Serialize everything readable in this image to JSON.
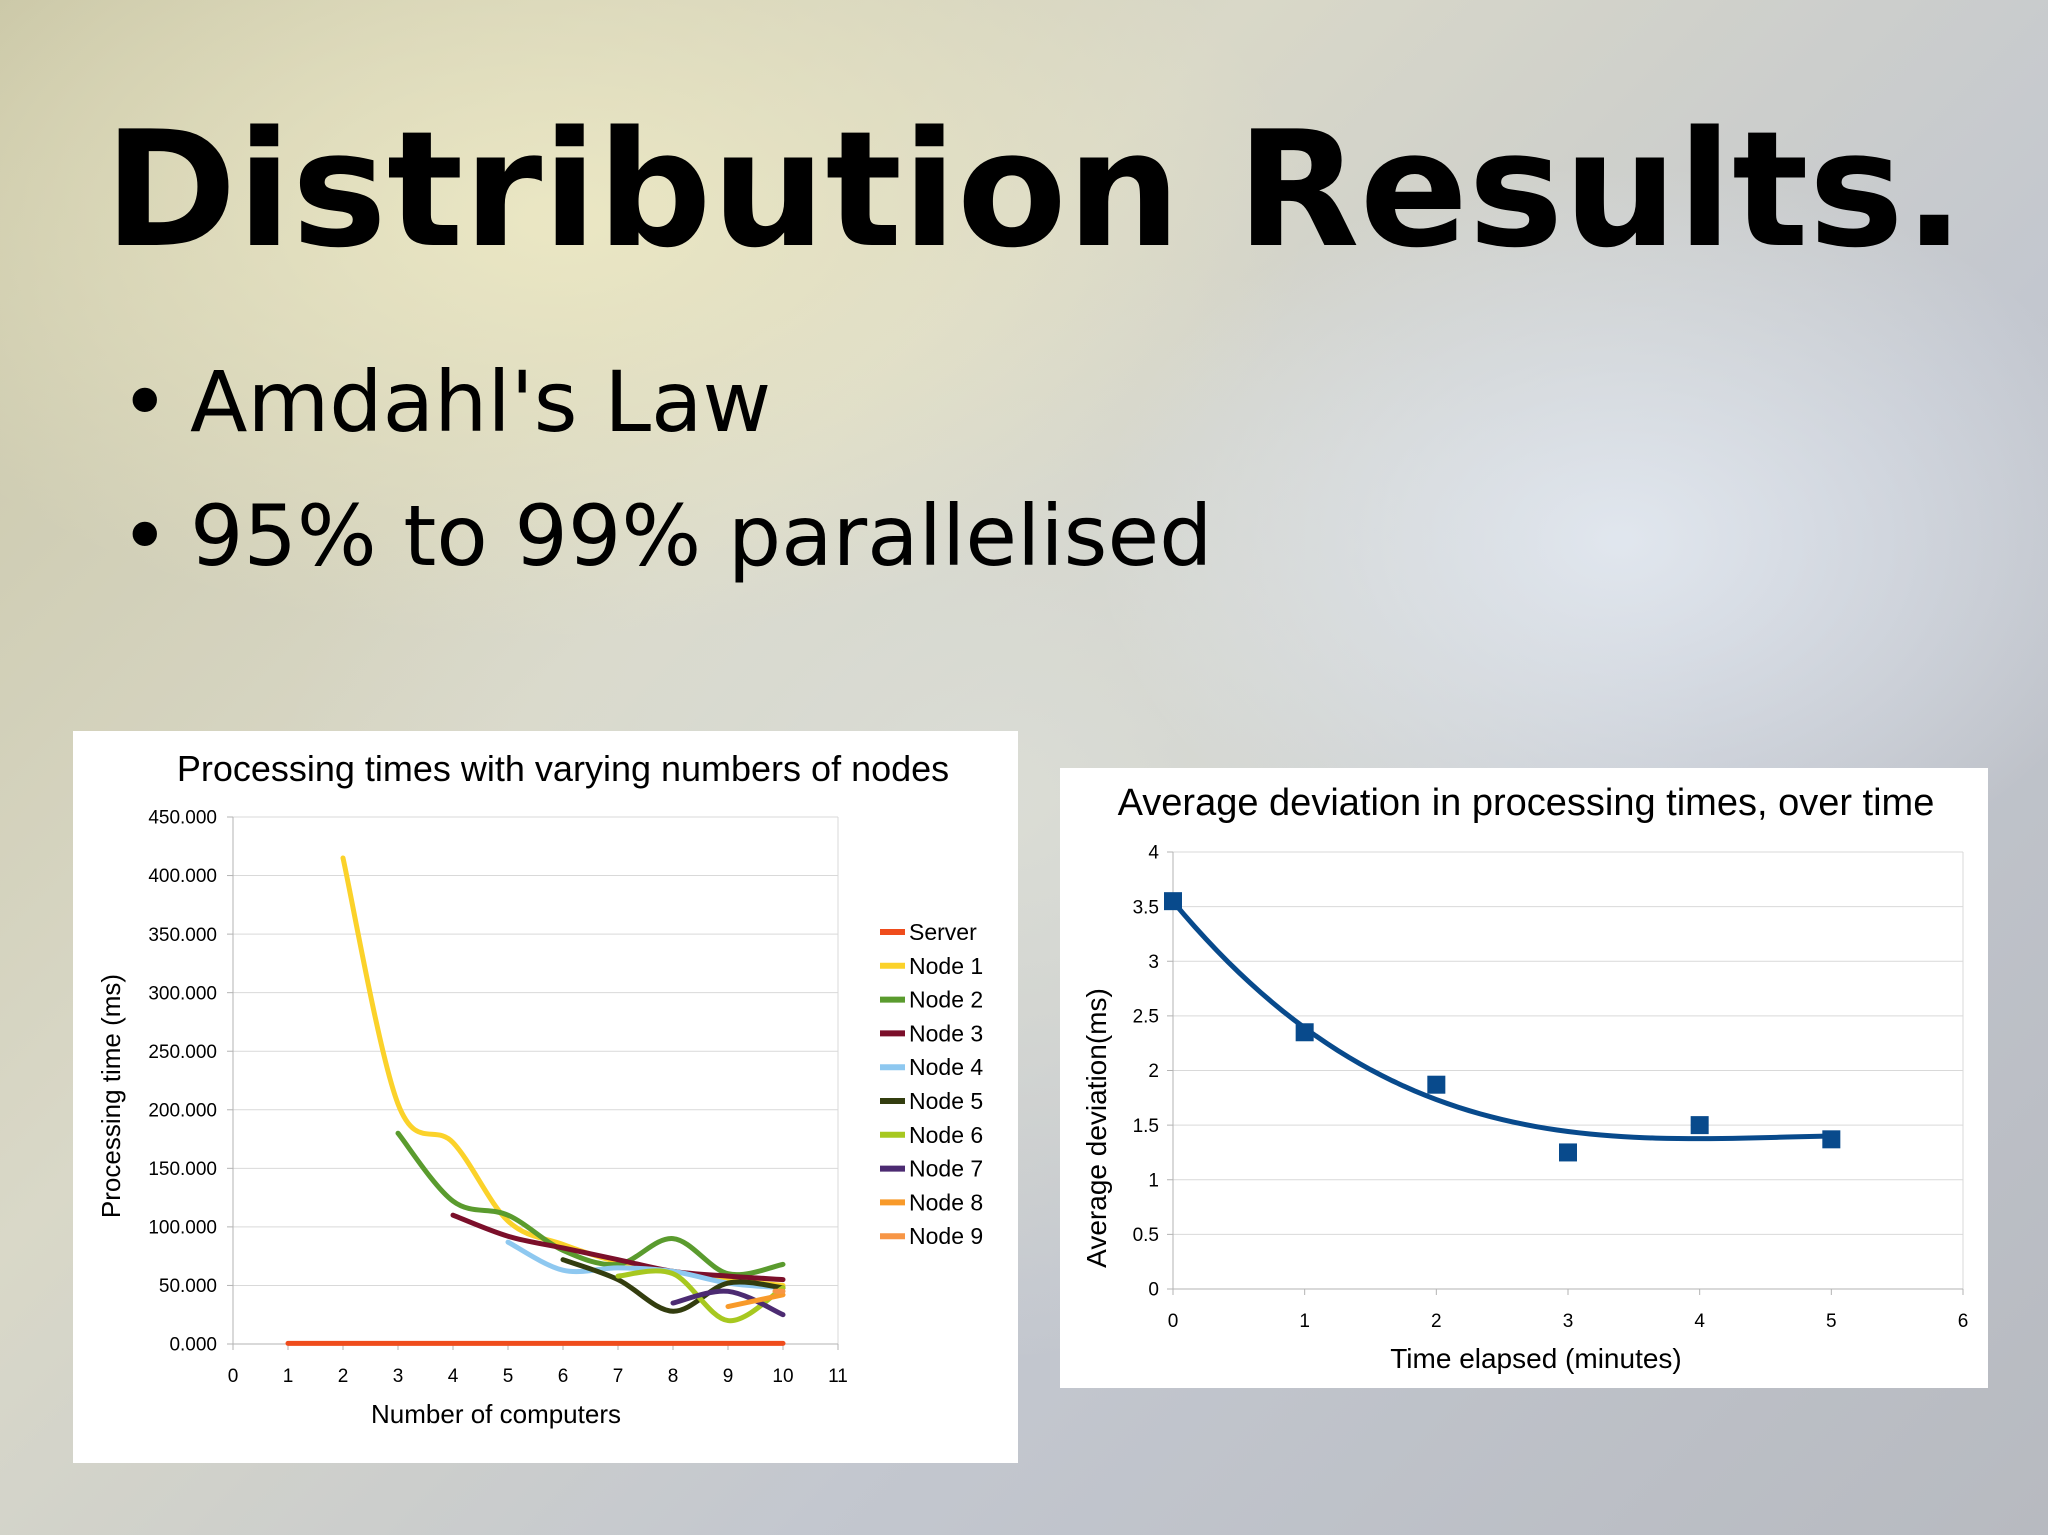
{
  "slide": {
    "title": "Distribution Results.",
    "bullets": [
      "Amdahl's Law",
      "95% to 99% parallelised"
    ]
  },
  "chart_data": [
    {
      "type": "line",
      "title": "Processing times with varying numbers of nodes",
      "xlabel": "Number of computers",
      "ylabel": "Processing time (ms)",
      "xlim": [
        0,
        11
      ],
      "ylim": [
        0,
        450
      ],
      "x_ticks": [
        "0",
        "1",
        "2",
        "3",
        "4",
        "5",
        "6",
        "7",
        "8",
        "9",
        "10",
        "11"
      ],
      "y_ticks": [
        "0.000",
        "50.000",
        "100.000",
        "150.000",
        "200.000",
        "250.000",
        "300.000",
        "350.000",
        "400.000",
        "450.000"
      ],
      "y_tick_values": [
        0,
        50,
        100,
        150,
        200,
        250,
        300,
        350,
        400,
        450
      ],
      "grid": true,
      "legend_position": "right",
      "series": [
        {
          "name": "Server",
          "color": "#ef4c1c",
          "x": [
            1,
            2,
            3,
            4,
            5,
            6,
            7,
            8,
            9,
            10
          ],
          "values": [
            0.5,
            0.5,
            0.5,
            0.5,
            0.5,
            0.5,
            0.5,
            0.5,
            0.5,
            0.5
          ]
        },
        {
          "name": "Node 1",
          "color": "#fbd22a",
          "x": [
            2,
            3,
            4,
            5,
            6,
            7,
            8,
            9,
            10
          ],
          "values": [
            415,
            205,
            172,
            105,
            85,
            70,
            62,
            55,
            50
          ]
        },
        {
          "name": "Node 2",
          "color": "#5a9b2e",
          "x": [
            3,
            4,
            5,
            6,
            7,
            8,
            9,
            10
          ],
          "values": [
            180,
            122,
            110,
            80,
            68,
            90,
            60,
            68
          ]
        },
        {
          "name": "Node 3",
          "color": "#7b0f2a",
          "x": [
            4,
            5,
            6,
            7,
            8,
            9,
            10
          ],
          "values": [
            110,
            92,
            82,
            72,
            62,
            58,
            55
          ]
        },
        {
          "name": "Node 4",
          "color": "#8ec8f0",
          "x": [
            5,
            6,
            7,
            8,
            9,
            10
          ],
          "values": [
            87,
            63,
            65,
            62,
            52,
            48
          ]
        },
        {
          "name": "Node 5",
          "color": "#333d0f",
          "x": [
            6,
            7,
            8,
            9,
            10
          ],
          "values": [
            72,
            55,
            28,
            52,
            48
          ]
        },
        {
          "name": "Node 6",
          "color": "#a7c820",
          "x": [
            7,
            8,
            9,
            10
          ],
          "values": [
            58,
            60,
            20,
            48
          ]
        },
        {
          "name": "Node 7",
          "color": "#4c2b72",
          "x": [
            8,
            9,
            10
          ],
          "values": [
            35,
            45,
            25
          ]
        },
        {
          "name": "Node 8",
          "color": "#f89a2a",
          "x": [
            9,
            10
          ],
          "values": [
            32,
            42
          ]
        },
        {
          "name": "Node 9",
          "color": "#f79646",
          "x": [
            10
          ],
          "values": [
            45
          ]
        }
      ]
    },
    {
      "type": "scatter",
      "title": "Average deviation in processing times, over time",
      "xlabel": "Time elapsed (minutes)",
      "ylabel": "Average deviation(ms)",
      "xlim": [
        0,
        6
      ],
      "ylim": [
        0,
        4
      ],
      "x_ticks": [
        "0",
        "1",
        "2",
        "3",
        "4",
        "5",
        "6"
      ],
      "y_ticks": [
        "0",
        "0.5",
        "1",
        "1.5",
        "2",
        "2.5",
        "3",
        "3.5",
        "4"
      ],
      "y_tick_values": [
        0,
        0.5,
        1,
        1.5,
        2,
        2.5,
        3,
        3.5,
        4
      ],
      "grid": true,
      "trendline": true,
      "series": [
        {
          "color": "#084a8c",
          "x": [
            0,
            1,
            2,
            3,
            4,
            5
          ],
          "values": [
            3.55,
            2.35,
            1.87,
            1.25,
            1.5,
            1.37
          ]
        }
      ]
    }
  ]
}
